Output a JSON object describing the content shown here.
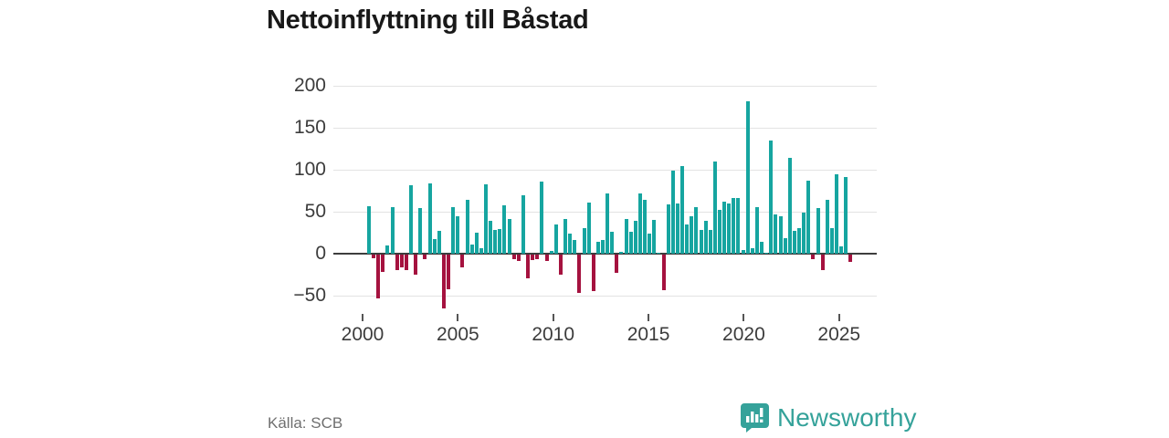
{
  "header": {
    "title": "Nettoinflyttning till Båstad"
  },
  "footer": {
    "source": "Källa: SCB",
    "brand": "Newsworthy"
  },
  "icons": {
    "brand_icon": "bar-chart-speech-bubble-icon"
  },
  "chart_data": {
    "type": "bar",
    "title": "Nettoinflyttning till Båstad",
    "subtitle": "",
    "xlabel": "",
    "ylabel": "",
    "period": "2000 Q1 – 2025 Q4, quarterly net migration",
    "grid": "horizontal",
    "legend": "none",
    "ylim": [
      -75,
      210
    ],
    "y_tick_values": [
      200,
      150,
      100,
      50,
      0,
      -50
    ],
    "y_tick_labels": [
      "200",
      "150",
      "100",
      "50",
      "0",
      "−50"
    ],
    "x_tick_labels": [
      "2000",
      "2005",
      "2010",
      "2015",
      "2020",
      "2025"
    ],
    "x_tick_years": [
      2000,
      2005,
      2010,
      2015,
      2020,
      2025
    ],
    "positive_color": "#16a5a0",
    "negative_color": "#a5123f",
    "start_quarter": "2000-Q1",
    "values": [
      57,
      -4,
      -52,
      -21,
      10,
      56,
      -19,
      -15,
      -18,
      82,
      -24,
      55,
      -5,
      84,
      17,
      27,
      -64,
      -41,
      56,
      45,
      -15,
      64,
      11,
      25,
      7,
      83,
      39,
      28,
      29,
      58,
      41,
      -5,
      -8,
      70,
      -28,
      -6,
      -5,
      86,
      -8,
      3,
      35,
      -24,
      41,
      24,
      16,
      -46,
      31,
      61,
      -44,
      14,
      16,
      72,
      26,
      -22,
      2,
      41,
      26,
      39,
      72,
      64,
      24,
      40,
      1,
      -43,
      59,
      99,
      60,
      105,
      35,
      45,
      56,
      28,
      39,
      28,
      110,
      52,
      62,
      60,
      66,
      66,
      4,
      182,
      7,
      56,
      14,
      1,
      135,
      47,
      45,
      18,
      114,
      27,
      30,
      49,
      87,
      -5,
      55,
      -19,
      64,
      30,
      95,
      9,
      92,
      -9
    ]
  }
}
